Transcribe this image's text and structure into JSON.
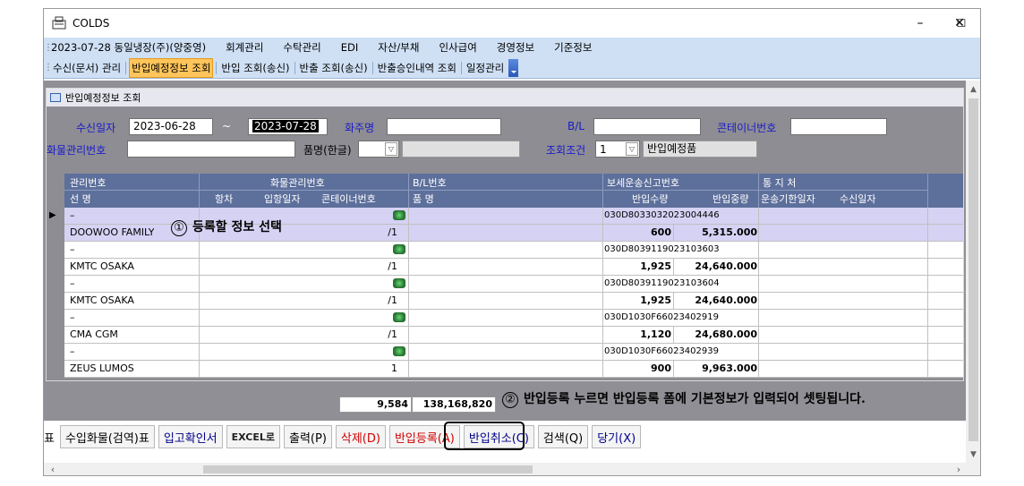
{
  "window": {
    "title": "COLDS",
    "minimize": "–",
    "maximize": "☐",
    "close": "✕"
  },
  "menu": {
    "items": [
      "2023-07-28 동일냉장(주)(양중영)",
      "회계관리",
      "수탁관리",
      "EDI",
      "자산/부채",
      "인사급여",
      "경영정보",
      "기준정보"
    ]
  },
  "tabs": {
    "items": [
      "수신(문서) 관리",
      "반입예정정보 조회",
      "반입 조회(송신)",
      "반출 조회(송신)",
      "반출승인내역 조회",
      "일정관리"
    ],
    "active_index": 1
  },
  "panel": {
    "title": "반입예정정보 조회"
  },
  "form": {
    "recv_date_label": "수신일자",
    "date_from": "2023-06-28",
    "tilde": "~",
    "date_to": "2023-07-28",
    "shipper_label": "화주명",
    "shipper_value": "",
    "bl_label": "B/L",
    "bl_value": "",
    "container_label": "콘테이너번호",
    "container_value": "",
    "cargo_no_label": "화물관리번호",
    "cargo_no_value": "",
    "item_name_label": "품명(한글)",
    "item_name_value": "",
    "query_cond_label": "조회조건",
    "query_cond_value": "1",
    "query_cond_text": "반입예정품"
  },
  "grid": {
    "header_row1": [
      "관리번호",
      "화물관리번호",
      "B/L번호",
      "보세운송신고번호",
      "통 지 처"
    ],
    "header_row2": [
      "선   명",
      "항차",
      "입항일자",
      "콘테이너번호",
      "품   명",
      "반입수량",
      "반입중량",
      "운송기한일자",
      "수신일자"
    ],
    "records": [
      {
        "mgmt_no": "–",
        "vessel": "DOOWOO FAMILY",
        "voyage_date": "/1",
        "declaration_no": "030D8033032023004446",
        "qty": "600",
        "weight": "5,315.000",
        "selected": true
      },
      {
        "mgmt_no": "–",
        "vessel": "KMTC OSAKA",
        "voyage_date": "/1",
        "declaration_no": "030D8039119023103603",
        "qty": "1,925",
        "weight": "24,640.000",
        "selected": false
      },
      {
        "mgmt_no": "–",
        "vessel": "KMTC OSAKA",
        "voyage_date": "/1",
        "declaration_no": "030D8039119023103604",
        "qty": "1,925",
        "weight": "24,640.000",
        "selected": false
      },
      {
        "mgmt_no": "–",
        "vessel": "CMA CGM",
        "voyage_date": "/1",
        "declaration_no": "030D1030F66023402919",
        "qty": "1,120",
        "weight": "24,680.000",
        "selected": false
      },
      {
        "mgmt_no": "–",
        "vessel": "ZEUS LUMOS",
        "voyage_date": "1",
        "declaration_no": "030D1030F66023402939",
        "qty": "900",
        "weight": "9,963.000",
        "selected": false
      }
    ],
    "row_pointer": "▶"
  },
  "totals": {
    "qty": "9,584",
    "weight": "138,168,820"
  },
  "buttons": {
    "partial": "표",
    "import_cargo": "수입화물(검역)표",
    "receipt": "입고확인서",
    "excel": "EXCEL로",
    "print": "출력(P)",
    "delete": "삭제(D)",
    "register": "반입등록(A)",
    "cancel": "반입취소(C)",
    "search": "검색(Q)",
    "pull": "당기(X)"
  },
  "annotations": {
    "note1_num": "①",
    "note1_text": "등록할 정보 선택",
    "note2_num": "②",
    "note2_text": "반입등록 누르면  반입등록 폼에 기본정보가 입력되어 셋팅됩니다."
  },
  "colors": {
    "menu_bg": "#cfe0f5",
    "active_tab": "#ffc55a",
    "grid_header": "#5d6f9b",
    "selected_row": "#d6d2f4",
    "label_blue": "#1a1acc"
  }
}
